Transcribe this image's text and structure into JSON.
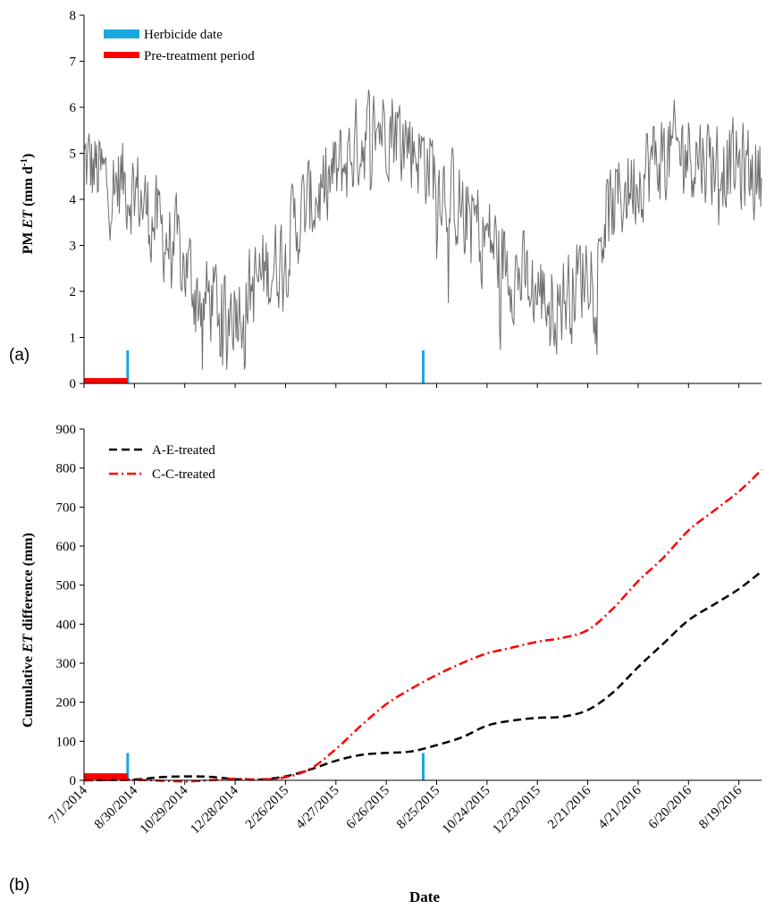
{
  "chart_data": [
    {
      "type": "line",
      "panel_label": "(a)",
      "ylabel_prefix": "PM ",
      "ylabel_italic": "ET",
      "ylabel_suffix": " (mm d",
      "ylabel_sup": "-1",
      "ylabel_close": ")",
      "ylim": [
        0,
        8
      ],
      "yticks": [
        0,
        1,
        2,
        3,
        4,
        5,
        6,
        7,
        8
      ],
      "xlim": [
        "2014-07-01",
        "2016-09-15"
      ],
      "legend": {
        "position": "top-left",
        "items": [
          "Herbicide date",
          "Pre-treatment period"
        ]
      },
      "colors": {
        "series": "#6e6e6e",
        "herbicide": "#1aa7e0",
        "pretreatment": "#ff0000"
      },
      "herbicide_dates": [
        "2014-08-22",
        "2015-08-09"
      ],
      "herbicide_marker_height": 0.72,
      "pretreatment_period": [
        "2014-07-01",
        "2014-08-22"
      ],
      "series_envelope": [
        {
          "date": "2014-07-01",
          "value": 4.8
        },
        {
          "date": "2014-07-15",
          "value": 4.6
        },
        {
          "date": "2014-08-01",
          "value": 4.3
        },
        {
          "date": "2014-08-15",
          "value": 4.4
        },
        {
          "date": "2014-09-01",
          "value": 4.2
        },
        {
          "date": "2014-09-15",
          "value": 3.7
        },
        {
          "date": "2014-10-01",
          "value": 3.3
        },
        {
          "date": "2014-10-15",
          "value": 3.0
        },
        {
          "date": "2014-11-01",
          "value": 2.5
        },
        {
          "date": "2014-11-15",
          "value": 1.9
        },
        {
          "date": "2014-12-01",
          "value": 1.8
        },
        {
          "date": "2014-12-15",
          "value": 1.6
        },
        {
          "date": "2015-01-01",
          "value": 1.8
        },
        {
          "date": "2015-01-15",
          "value": 2.0
        },
        {
          "date": "2015-02-01",
          "value": 2.4
        },
        {
          "date": "2015-02-15",
          "value": 2.6
        },
        {
          "date": "2015-03-01",
          "value": 3.2
        },
        {
          "date": "2015-03-15",
          "value": 3.6
        },
        {
          "date": "2015-04-01",
          "value": 4.0
        },
        {
          "date": "2015-04-15",
          "value": 4.3
        },
        {
          "date": "2015-05-01",
          "value": 4.6
        },
        {
          "date": "2015-05-15",
          "value": 5.0
        },
        {
          "date": "2015-06-01",
          "value": 5.4
        },
        {
          "date": "2015-06-15",
          "value": 5.6
        },
        {
          "date": "2015-07-01",
          "value": 5.7
        },
        {
          "date": "2015-07-15",
          "value": 5.4
        },
        {
          "date": "2015-08-01",
          "value": 5.1
        },
        {
          "date": "2015-08-15",
          "value": 4.8
        },
        {
          "date": "2015-09-01",
          "value": 4.4
        },
        {
          "date": "2015-09-15",
          "value": 4.0
        },
        {
          "date": "2015-10-01",
          "value": 3.7
        },
        {
          "date": "2015-10-15",
          "value": 3.4
        },
        {
          "date": "2015-11-01",
          "value": 3.0
        },
        {
          "date": "2015-11-15",
          "value": 2.7
        },
        {
          "date": "2015-12-01",
          "value": 2.3
        },
        {
          "date": "2015-12-15",
          "value": 2.1
        },
        {
          "date": "2016-01-01",
          "value": 1.9
        },
        {
          "date": "2016-01-15",
          "value": 1.8
        },
        {
          "date": "2016-02-01",
          "value": 2.0
        },
        {
          "date": "2016-02-15",
          "value": 2.4
        },
        {
          "date": "2016-03-01",
          "value": 3.0
        },
        {
          "date": "2016-03-15",
          "value": 3.6
        },
        {
          "date": "2016-04-01",
          "value": 4.1
        },
        {
          "date": "2016-04-15",
          "value": 4.4
        },
        {
          "date": "2016-05-01",
          "value": 4.7
        },
        {
          "date": "2016-05-15",
          "value": 4.9
        },
        {
          "date": "2016-06-01",
          "value": 5.0
        },
        {
          "date": "2016-06-15",
          "value": 5.1
        },
        {
          "date": "2016-07-01",
          "value": 5.0
        },
        {
          "date": "2016-07-15",
          "value": 4.9
        },
        {
          "date": "2016-08-01",
          "value": 4.8
        },
        {
          "date": "2016-08-15",
          "value": 4.7
        },
        {
          "date": "2016-09-01",
          "value": 4.6
        },
        {
          "date": "2016-09-15",
          "value": 4.5
        }
      ],
      "series_daily_variation": 1.4
    },
    {
      "type": "line",
      "panel_label": "(b)",
      "ylabel_prefix": "Cumulative ",
      "ylabel_italic": "ET",
      "ylabel_suffix": " difference (mm)",
      "xlabel": "Date",
      "ylim": [
        0,
        900
      ],
      "yticks": [
        0,
        100,
        200,
        300,
        400,
        500,
        600,
        700,
        800,
        900
      ],
      "xlim": [
        "2014-07-01",
        "2016-09-15"
      ],
      "x_tick_labels": [
        "7/1/2014",
        "8/30/2014",
        "10/29/2014",
        "12/28/2014",
        "2/26/2015",
        "4/27/2015",
        "6/26/2015",
        "8/25/2015",
        "10/24/2015",
        "12/23/2015",
        "2/21/2016",
        "4/21/2016",
        "6/20/2016",
        "8/19/2016"
      ],
      "x_tick_dates": [
        "2014-07-01",
        "2014-08-30",
        "2014-10-29",
        "2014-12-28",
        "2015-02-26",
        "2015-04-27",
        "2015-06-26",
        "2015-08-25",
        "2015-10-24",
        "2015-12-23",
        "2016-02-21",
        "2016-04-21",
        "2016-06-20",
        "2016-08-19"
      ],
      "legend": {
        "position": "top-left"
      },
      "herbicide_dates": [
        "2014-08-22",
        "2015-08-09"
      ],
      "herbicide_marker_height": 70,
      "pretreatment_period": [
        "2014-07-01",
        "2014-08-22"
      ],
      "pretreatment_value": 10,
      "colors": {
        "herbicide": "#1aa7e0",
        "pretreatment": "#ff0000"
      },
      "series": [
        {
          "name": "A-E-treated",
          "color": "#000000",
          "style": "dash",
          "points": [
            {
              "date": "2014-07-01",
              "value": 0
            },
            {
              "date": "2014-08-30",
              "value": 2
            },
            {
              "date": "2014-09-30",
              "value": 8
            },
            {
              "date": "2014-10-29",
              "value": 10
            },
            {
              "date": "2014-11-28",
              "value": 9
            },
            {
              "date": "2014-12-28",
              "value": 3
            },
            {
              "date": "2015-01-27",
              "value": 2
            },
            {
              "date": "2015-02-26",
              "value": 10
            },
            {
              "date": "2015-03-28",
              "value": 28
            },
            {
              "date": "2015-04-27",
              "value": 50
            },
            {
              "date": "2015-05-27",
              "value": 65
            },
            {
              "date": "2015-06-26",
              "value": 70
            },
            {
              "date": "2015-07-26",
              "value": 74
            },
            {
              "date": "2015-08-25",
              "value": 90
            },
            {
              "date": "2015-09-24",
              "value": 110
            },
            {
              "date": "2015-10-24",
              "value": 140
            },
            {
              "date": "2015-11-23",
              "value": 153
            },
            {
              "date": "2015-12-23",
              "value": 160
            },
            {
              "date": "2016-01-22",
              "value": 163
            },
            {
              "date": "2016-02-21",
              "value": 180
            },
            {
              "date": "2016-03-22",
              "value": 225
            },
            {
              "date": "2016-04-21",
              "value": 290
            },
            {
              "date": "2016-05-21",
              "value": 350
            },
            {
              "date": "2016-06-20",
              "value": 410
            },
            {
              "date": "2016-07-20",
              "value": 450
            },
            {
              "date": "2016-08-19",
              "value": 490
            },
            {
              "date": "2016-09-15",
              "value": 535
            }
          ]
        },
        {
          "name": "C-C-treated",
          "color": "#ff0000",
          "style": "dash-dot",
          "points": [
            {
              "date": "2014-07-01",
              "value": 0
            },
            {
              "date": "2014-08-30",
              "value": 1
            },
            {
              "date": "2014-09-30",
              "value": -1
            },
            {
              "date": "2014-10-29",
              "value": -3
            },
            {
              "date": "2014-11-28",
              "value": 0
            },
            {
              "date": "2014-12-28",
              "value": 4
            },
            {
              "date": "2015-01-27",
              "value": 2
            },
            {
              "date": "2015-02-26",
              "value": 8
            },
            {
              "date": "2015-03-28",
              "value": 30
            },
            {
              "date": "2015-04-27",
              "value": 80
            },
            {
              "date": "2015-05-27",
              "value": 140
            },
            {
              "date": "2015-06-26",
              "value": 195
            },
            {
              "date": "2015-07-26",
              "value": 235
            },
            {
              "date": "2015-08-25",
              "value": 270
            },
            {
              "date": "2015-09-24",
              "value": 300
            },
            {
              "date": "2015-10-24",
              "value": 325
            },
            {
              "date": "2015-11-23",
              "value": 340
            },
            {
              "date": "2015-12-23",
              "value": 355
            },
            {
              "date": "2016-01-22",
              "value": 365
            },
            {
              "date": "2016-02-21",
              "value": 385
            },
            {
              "date": "2016-03-22",
              "value": 440
            },
            {
              "date": "2016-04-21",
              "value": 510
            },
            {
              "date": "2016-05-21",
              "value": 570
            },
            {
              "date": "2016-06-20",
              "value": 640
            },
            {
              "date": "2016-07-20",
              "value": 690
            },
            {
              "date": "2016-08-19",
              "value": 740
            },
            {
              "date": "2016-09-15",
              "value": 795
            }
          ]
        }
      ]
    }
  ]
}
